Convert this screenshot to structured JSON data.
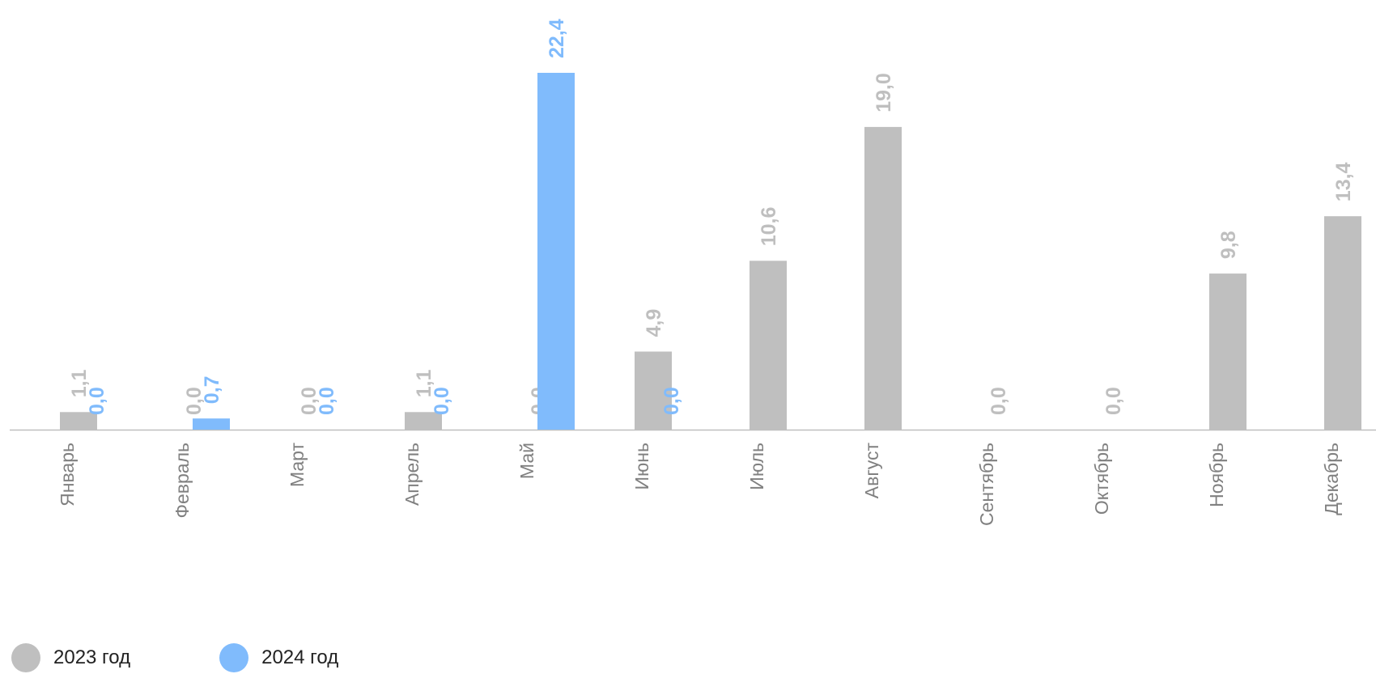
{
  "chart_data": {
    "type": "bar",
    "categories": [
      "Январь",
      "Февраль",
      "Март",
      "Апрель",
      "Май",
      "Июнь",
      "Июль",
      "Август",
      "Сентябрь",
      "Октябрь",
      "Ноябрь",
      "Декабрь"
    ],
    "series": [
      {
        "name": "2023 год",
        "color": "#bfbfbf",
        "values": [
          1.1,
          0.0,
          0.0,
          1.1,
          0.0,
          4.9,
          10.6,
          19.0,
          0.0,
          0.0,
          9.8,
          13.4
        ],
        "labels": [
          "1,1",
          "0,0",
          "0,0",
          "1,1",
          "0,0",
          "4,9",
          "10,6",
          "19,0",
          "0,0",
          "0,0",
          "9,8",
          "13,4"
        ]
      },
      {
        "name": "2024 год",
        "color": "#80bbfc",
        "values": [
          0.0,
          0.7,
          0.0,
          0.0,
          22.4,
          0.0,
          null,
          null,
          null,
          null,
          null,
          null
        ],
        "labels": [
          "0,0",
          "0,7",
          "0,0",
          "0,0",
          "22,4",
          "0,0",
          "",
          "",
          "",
          "",
          "",
          ""
        ]
      }
    ],
    "ylim": [
      0,
      22.4
    ],
    "grid": false,
    "legend": "bottom-left",
    "axis_color": "#bfbfbf",
    "tick_label_color": "#808080"
  }
}
